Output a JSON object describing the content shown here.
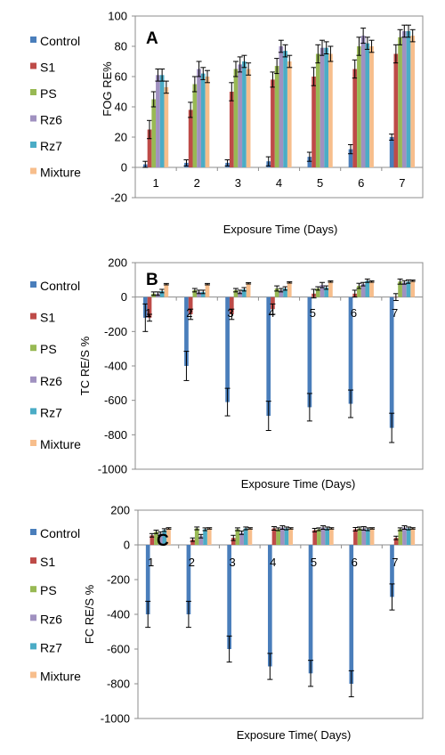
{
  "chart_data": [
    {
      "type": "bar",
      "panel_label": "A",
      "categories": [
        "1",
        "2",
        "3",
        "4",
        "5",
        "6",
        "7"
      ],
      "series": [
        {
          "name": "Control",
          "color": "#4a7ebb",
          "values": [
            2,
            3,
            3,
            4,
            7,
            12,
            20
          ],
          "errors": [
            2,
            2,
            2,
            3,
            3,
            3,
            2
          ]
        },
        {
          "name": "S1",
          "color": "#be4b48",
          "values": [
            25,
            38,
            50,
            58,
            60,
            65,
            75
          ],
          "errors": [
            6,
            5,
            6,
            5,
            6,
            6,
            6
          ]
        },
        {
          "name": "PS",
          "color": "#98b954",
          "values": [
            45,
            55,
            65,
            67,
            75,
            80,
            86
          ],
          "errors": [
            5,
            5,
            5,
            5,
            6,
            6,
            5
          ]
        },
        {
          "name": "Rz6",
          "color": "#a091c0",
          "values": [
            61,
            65,
            68,
            80,
            79,
            87,
            90
          ],
          "errors": [
            4,
            5,
            5,
            4,
            5,
            5,
            4
          ]
        },
        {
          "name": "Rz7",
          "color": "#4bacc6",
          "values": [
            61,
            62,
            70,
            77,
            79,
            82,
            90
          ],
          "errors": [
            4,
            4,
            4,
            4,
            4,
            4,
            4
          ]
        },
        {
          "name": "Mixture",
          "color": "#f7be8c",
          "values": [
            53,
            60,
            65,
            70,
            75,
            80,
            87
          ],
          "errors": [
            4,
            4,
            4,
            4,
            5,
            4,
            4
          ]
        }
      ],
      "ylabel": "FOG RE%",
      "xlabel": "Exposure Time (Days)",
      "ylim": [
        -20,
        100
      ],
      "yticks": [
        -20,
        0,
        20,
        40,
        60,
        80,
        100
      ],
      "grid": false,
      "legend": "left"
    },
    {
      "type": "bar",
      "panel_label": "B",
      "categories": [
        "1",
        "2",
        "3",
        "4",
        "5",
        "6",
        "7"
      ],
      "series": [
        {
          "name": "Control",
          "color": "#4a7ebb",
          "values": [
            -120,
            -400,
            -610,
            -690,
            -640,
            -620,
            -760
          ],
          "errors": [
            80,
            85,
            80,
            85,
            80,
            80,
            85
          ]
        },
        {
          "name": "S1",
          "color": "#be4b48",
          "values": [
            -120,
            -100,
            -100,
            -70,
            20,
            20,
            0
          ],
          "errors": [
            20,
            30,
            30,
            30,
            25,
            20,
            20
          ]
        },
        {
          "name": "PS",
          "color": "#98b954",
          "values": [
            20,
            40,
            40,
            50,
            50,
            65,
            90
          ],
          "errors": [
            10,
            10,
            10,
            15,
            10,
            15,
            15
          ]
        },
        {
          "name": "Rz6",
          "color": "#a091c0",
          "values": [
            20,
            30,
            30,
            40,
            70,
            75,
            85
          ],
          "errors": [
            10,
            10,
            10,
            10,
            15,
            10,
            10
          ]
        },
        {
          "name": "Rz7",
          "color": "#4bacc6",
          "values": [
            35,
            30,
            45,
            50,
            55,
            95,
            90
          ],
          "errors": [
            10,
            10,
            10,
            10,
            10,
            10,
            10
          ]
        },
        {
          "name": "Mixture",
          "color": "#f7be8c",
          "values": [
            75,
            75,
            80,
            85,
            90,
            90,
            95
          ],
          "errors": [
            4,
            4,
            4,
            4,
            4,
            4,
            4
          ]
        }
      ],
      "ylabel": "TC  RE/S %",
      "xlabel": "Exposure Time (Days)",
      "ylim": [
        -1000,
        200
      ],
      "yticks": [
        -1000,
        -800,
        -600,
        -400,
        -200,
        0,
        200
      ],
      "grid": false,
      "legend": "left"
    },
    {
      "type": "bar",
      "panel_label": "C",
      "categories": [
        "1",
        "2",
        "3",
        "4",
        "5",
        "6",
        "7"
      ],
      "series": [
        {
          "name": "Control",
          "color": "#4a7ebb",
          "values": [
            -400,
            -400,
            -600,
            -700,
            -740,
            -800,
            -300
          ],
          "errors": [
            75,
            75,
            75,
            75,
            75,
            75,
            75
          ]
        },
        {
          "name": "S1",
          "color": "#be4b48",
          "values": [
            55,
            30,
            40,
            95,
            85,
            90,
            40
          ],
          "errors": [
            10,
            10,
            15,
            10,
            10,
            10,
            10
          ]
        },
        {
          "name": "PS",
          "color": "#98b954",
          "values": [
            75,
            95,
            90,
            90,
            90,
            95,
            90
          ],
          "errors": [
            10,
            8,
            8,
            8,
            8,
            8,
            8
          ]
        },
        {
          "name": "Rz6",
          "color": "#a091c0",
          "values": [
            65,
            50,
            70,
            100,
            100,
            95,
            100
          ],
          "errors": [
            10,
            10,
            10,
            10,
            10,
            10,
            10
          ]
        },
        {
          "name": "Rz7",
          "color": "#4bacc6",
          "values": [
            85,
            90,
            95,
            95,
            95,
            90,
            95
          ],
          "errors": [
            8,
            8,
            8,
            8,
            8,
            8,
            8
          ]
        },
        {
          "name": "Mixture",
          "color": "#f7be8c",
          "values": [
            95,
            95,
            95,
            95,
            95,
            95,
            95
          ],
          "errors": [
            4,
            4,
            4,
            4,
            4,
            4,
            4
          ]
        }
      ],
      "ylabel": "FC RE/S %",
      "xlabel": "Exposure Time( Days)",
      "ylim": [
        -1000,
        200
      ],
      "yticks": [
        -1000,
        -800,
        -600,
        -400,
        -200,
        0,
        200
      ],
      "grid": false,
      "legend": "left"
    }
  ]
}
